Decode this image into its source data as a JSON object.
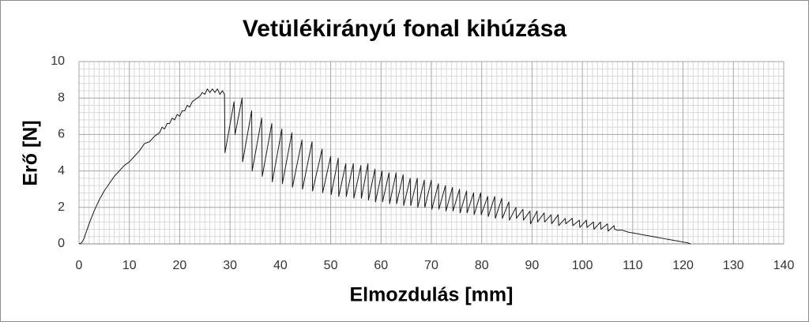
{
  "chart_data": {
    "type": "line",
    "title": "Vetülékirányú fonal kihúzása",
    "x_label": "Elmozdulás [mm]",
    "y_label": "Erő [N]",
    "x": [
      0,
      0.5,
      1,
      1.5,
      2,
      3,
      4,
      5,
      6,
      7,
      8,
      9,
      10,
      11,
      12,
      13,
      14,
      15,
      16,
      16.5,
      17,
      17.5,
      18,
      18.5,
      19,
      19.5,
      20,
      20.5,
      21,
      21.5,
      22,
      22.5,
      23,
      23.5,
      24,
      24.5,
      25,
      25.5,
      26,
      26.5,
      27,
      27.5,
      28,
      28.5,
      28.9,
      29.0,
      30.8,
      31.0,
      32.4,
      32.5,
      34.3,
      34.4,
      36.3,
      36.4,
      38.3,
      38.4,
      40.3,
      40.4,
      42.3,
      42.4,
      44.3,
      44.4,
      46.3,
      46.4,
      48.3,
      48.4,
      50.0,
      50.1,
      51.5,
      51.6,
      53.0,
      53.1,
      54.5,
      54.6,
      56.0,
      56.1,
      57.4,
      57.5,
      58.8,
      58.9,
      60.2,
      60.3,
      61.6,
      61.7,
      63.0,
      63.1,
      64.4,
      64.5,
      65.8,
      65.9,
      67.2,
      67.3,
      68.6,
      68.7,
      70.0,
      70.1,
      71.4,
      71.5,
      72.8,
      72.9,
      74.2,
      74.3,
      75.6,
      75.7,
      77.0,
      77.1,
      78.4,
      78.5,
      79.8,
      79.9,
      81.2,
      81.3,
      82.6,
      82.7,
      84.0,
      84.1,
      85.4,
      85.5,
      86.8,
      86.9,
      88.2,
      88.3,
      89.6,
      89.7,
      91.0,
      91.1,
      92.4,
      92.5,
      93.8,
      93.9,
      95.2,
      95.3,
      96.6,
      96.7,
      98.0,
      98.1,
      99.4,
      99.5,
      100.8,
      100.9,
      102.2,
      102.3,
      103.6,
      103.7,
      105.0,
      105.1,
      106.3,
      106.4,
      107,
      108,
      109,
      110,
      111,
      112,
      113,
      114,
      115,
      116,
      117,
      118,
      119,
      120,
      121,
      121.5
    ],
    "series": [
      {
        "color": "#1a1a1a",
        "values": [
          0,
          0.05,
          0.3,
          0.7,
          1.1,
          1.8,
          2.4,
          2.9,
          3.3,
          3.7,
          4.0,
          4.3,
          4.5,
          4.8,
          5.1,
          5.5,
          5.6,
          5.9,
          6.1,
          6.4,
          6.3,
          6.6,
          6.6,
          6.9,
          6.8,
          7.1,
          7.0,
          7.3,
          7.3,
          7.6,
          7.5,
          7.8,
          7.9,
          8.0,
          8.1,
          8.3,
          8.2,
          8.5,
          8.3,
          8.5,
          8.3,
          8.5,
          8.2,
          8.4,
          8.2,
          5.0,
          7.8,
          6.0,
          8.0,
          4.5,
          7.3,
          4.0,
          6.9,
          3.7,
          6.6,
          3.4,
          6.3,
          3.3,
          6.1,
          3.1,
          5.7,
          3.0,
          5.6,
          2.9,
          5.2,
          2.8,
          4.8,
          2.7,
          4.7,
          2.6,
          4.4,
          2.6,
          4.4,
          2.5,
          4.3,
          2.5,
          4.4,
          2.4,
          4.1,
          2.3,
          4.0,
          2.3,
          3.9,
          2.2,
          3.9,
          2.2,
          3.8,
          2.1,
          3.6,
          2.1,
          3.6,
          2.0,
          3.5,
          2.0,
          3.5,
          1.9,
          3.3,
          1.9,
          3.2,
          1.8,
          3.1,
          1.8,
          3.0,
          1.7,
          2.9,
          1.7,
          2.8,
          1.6,
          2.8,
          1.6,
          2.6,
          1.5,
          2.6,
          1.4,
          2.5,
          1.4,
          2.3,
          1.3,
          2.0,
          1.4,
          1.9,
          1.3,
          1.8,
          1.1,
          1.8,
          1.2,
          1.7,
          1.2,
          1.6,
          1.1,
          1.6,
          1.0,
          1.4,
          1.1,
          1.4,
          1.0,
          1.3,
          0.9,
          1.3,
          0.9,
          1.2,
          0.8,
          1.2,
          0.8,
          1.1,
          0.7,
          1.0,
          0.8,
          0.75,
          0.75,
          0.65,
          0.6,
          0.55,
          0.5,
          0.45,
          0.4,
          0.35,
          0.3,
          0.25,
          0.2,
          0.15,
          0.1,
          0.05,
          0
        ]
      }
    ],
    "xlim": [
      0,
      140
    ],
    "xticks": [
      0,
      10,
      20,
      30,
      40,
      50,
      60,
      70,
      80,
      90,
      100,
      110,
      120,
      130,
      140
    ],
    "ylim": [
      0,
      10
    ],
    "yticks": [
      0,
      2,
      4,
      6,
      8,
      10
    ],
    "grid": true,
    "minor_grid": true
  }
}
